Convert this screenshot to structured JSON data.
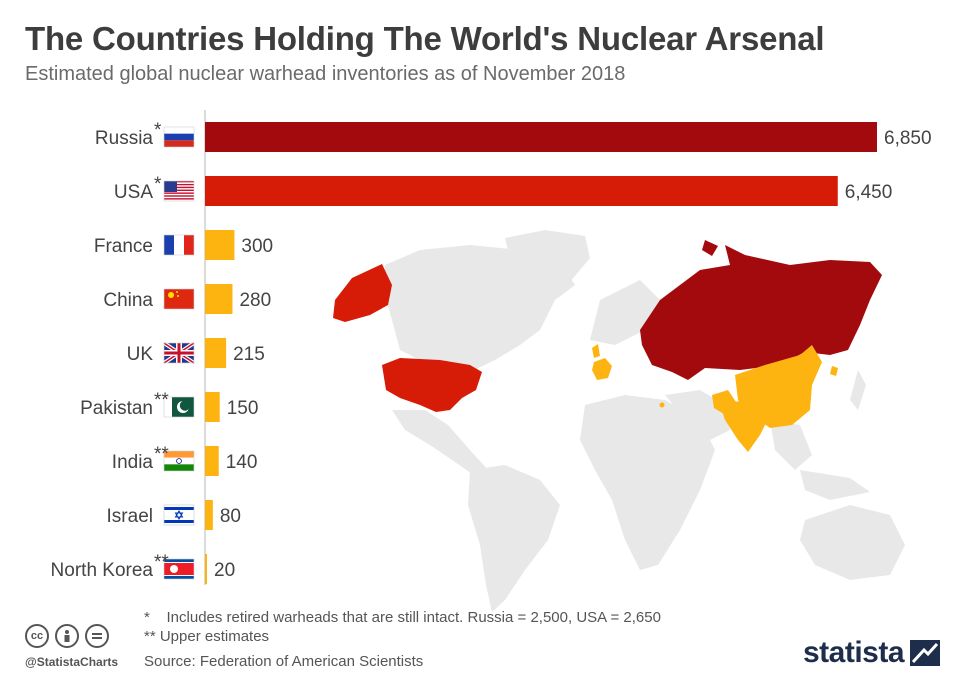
{
  "header": {
    "title": "The Countries Holding The World's Nuclear Arsenal",
    "subtitle": "Estimated global nuclear warhead inventories as of November 2018"
  },
  "chart_data": {
    "type": "bar",
    "orientation": "horizontal",
    "categories": [
      "Russia",
      "USA",
      "France",
      "China",
      "UK",
      "Pakistan",
      "India",
      "Israel",
      "North Korea"
    ],
    "category_marks": [
      "*",
      "*",
      "",
      "",
      "",
      "**",
      "**",
      "",
      "**"
    ],
    "values": [
      6850,
      6450,
      300,
      280,
      215,
      150,
      140,
      80,
      20
    ],
    "value_labels": [
      "6,850",
      "6,450",
      "300",
      "280",
      "215",
      "150",
      "140",
      "80",
      "20"
    ],
    "bar_colors": [
      "#a30a0d",
      "#d61c06",
      "#fdb310",
      "#fdb310",
      "#fdb310",
      "#fdb310",
      "#fdb310",
      "#fdb310",
      "#fdb310"
    ],
    "xlim": [
      0,
      6850
    ],
    "grid": false
  },
  "colors": {
    "map_land": "#e8e8e8",
    "russia": "#a30a0d",
    "usa": "#d61c06",
    "others": "#fdb310"
  },
  "notes": {
    "note1_mark": "*",
    "note1_text": "Includes retired warheads that are still intact. Russia = 2,500, USA = 2,650",
    "note2": "** Upper estimates"
  },
  "footer": {
    "source": "Source: Federation of American Scientists",
    "handle": "@StatistaCharts",
    "brand": "statista",
    "license_icons": [
      "cc-icon",
      "by-icon",
      "nd-icon"
    ]
  }
}
